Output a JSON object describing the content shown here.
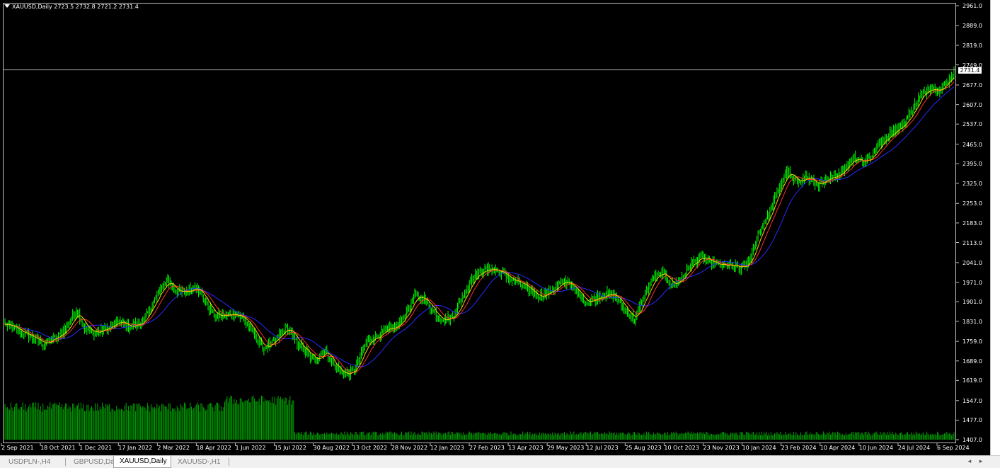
{
  "window": {
    "symbol_header": "XAUUSD,Daily  2723.5 2732.8 2721.2 2731.4",
    "current_price_label": "2731.4"
  },
  "colors": {
    "background": "#000000",
    "bull_bar": "#00ff00",
    "volume": "#00a800",
    "ma_fast": "#ffd000",
    "ma_slow": "#ff3030",
    "ma_long": "#2a2aff",
    "axis_text": "#ffffff"
  },
  "chart_data": {
    "type": "ohlc-bar",
    "instrument": "XAUUSD",
    "timeframe": "Daily",
    "last_bar": {
      "open": 2723.5,
      "high": 2732.8,
      "low": 2721.2,
      "close": 2731.4
    },
    "price_ticks": [
      "2961.0",
      "2889.0",
      "2819.0",
      "2749.0",
      "2677.0",
      "2607.0",
      "2537.0",
      "2465.0",
      "2395.0",
      "2325.0",
      "2253.0",
      "2183.0",
      "2113.0",
      "2041.0",
      "1971.0",
      "1901.0",
      "1831.0",
      "1759.0",
      "1689.0",
      "1619.0",
      "1547.0",
      "1477.0",
      "1407.0"
    ],
    "time_ticks": [
      "2 Sep 2021",
      "18 Oct 2021",
      "1 Dec 2021",
      "17 Jan 2022",
      "2 Mar 2022",
      "18 Apr 2022",
      "1 Jun 2022",
      "15 Jul 2022",
      "30 Aug 2022",
      "13 Oct 2022",
      "28 Nov 2022",
      "12 Jan 2023",
      "27 Feb 2023",
      "13 Apr 2023",
      "29 May 2023",
      "12 Jul 2023",
      "25 Aug 2023",
      "10 Oct 2023",
      "23 Nov 2023",
      "10 Jan 2024",
      "23 Feb 2024",
      "10 Apr 2024",
      "10 Jun 2024",
      "24 Jul 2024",
      "6 Sep 2024"
    ],
    "ylim": [
      1407,
      2961
    ],
    "close_path": [
      [
        0,
        1820
      ],
      [
        6,
        1770
      ],
      [
        8,
        1750
      ],
      [
        11,
        1775
      ],
      [
        13,
        1810
      ],
      [
        15,
        1870
      ],
      [
        17,
        1800
      ],
      [
        19,
        1790
      ],
      [
        22,
        1810
      ],
      [
        24,
        1830
      ],
      [
        26,
        1810
      ],
      [
        29,
        1830
      ],
      [
        31,
        1900
      ],
      [
        34,
        1980
      ],
      [
        36,
        1935
      ],
      [
        38,
        1935
      ],
      [
        40,
        1960
      ],
      [
        42,
        1900
      ],
      [
        44,
        1850
      ],
      [
        46,
        1850
      ],
      [
        48,
        1860
      ],
      [
        50,
        1840
      ],
      [
        52,
        1790
      ],
      [
        54,
        1735
      ],
      [
        56,
        1750
      ],
      [
        59,
        1810
      ],
      [
        61,
        1760
      ],
      [
        63,
        1720
      ],
      [
        65,
        1690
      ],
      [
        67,
        1730
      ],
      [
        69,
        1670
      ],
      [
        71,
        1640
      ],
      [
        73,
        1650
      ],
      [
        76,
        1760
      ],
      [
        79,
        1790
      ],
      [
        82,
        1810
      ],
      [
        84,
        1860
      ],
      [
        86,
        1920
      ],
      [
        88,
        1910
      ],
      [
        90,
        1860
      ],
      [
        92,
        1835
      ],
      [
        94,
        1850
      ],
      [
        96,
        1920
      ],
      [
        98,
        1990
      ],
      [
        100,
        2010
      ],
      [
        102,
        2020
      ],
      [
        104,
        2005
      ],
      [
        106,
        1980
      ],
      [
        108,
        1965
      ],
      [
        110,
        1940
      ],
      [
        112,
        1920
      ],
      [
        114,
        1935
      ],
      [
        116,
        1960
      ],
      [
        118,
        1975
      ],
      [
        120,
        1930
      ],
      [
        122,
        1900
      ],
      [
        124,
        1915
      ],
      [
        126,
        1930
      ],
      [
        128,
        1920
      ],
      [
        130,
        1870
      ],
      [
        132,
        1840
      ],
      [
        134,
        1920
      ],
      [
        136,
        1990
      ],
      [
        138,
        2000
      ],
      [
        140,
        1960
      ],
      [
        142,
        1990
      ],
      [
        144,
        2040
      ],
      [
        146,
        2060
      ],
      [
        148,
        2040
      ],
      [
        150,
        2030
      ],
      [
        152,
        2030
      ],
      [
        154,
        2020
      ],
      [
        156,
        2040
      ],
      [
        158,
        2150
      ],
      [
        160,
        2210
      ],
      [
        162,
        2300
      ],
      [
        164,
        2370
      ],
      [
        165,
        2340
      ],
      [
        166,
        2330
      ],
      [
        168,
        2350
      ],
      [
        170,
        2320
      ],
      [
        172,
        2330
      ],
      [
        174,
        2350
      ],
      [
        176,
        2380
      ],
      [
        178,
        2420
      ],
      [
        180,
        2400
      ],
      [
        182,
        2430
      ],
      [
        184,
        2480
      ],
      [
        186,
        2510
      ],
      [
        188,
        2530
      ],
      [
        190,
        2580
      ],
      [
        192,
        2640
      ],
      [
        194,
        2670
      ],
      [
        196,
        2660
      ],
      [
        198,
        2700
      ],
      [
        199,
        2731
      ]
    ],
    "volume_levels": {
      "first_segment_weeks": 52,
      "first_segment_avg": 1520,
      "rest_avg": 1428,
      "ylim": [
        1407,
        1620
      ]
    }
  },
  "tabs": [
    {
      "label": "USDPLN-,H4",
      "active": false
    },
    {
      "label": "GBPUSD,Daily",
      "active": false
    },
    {
      "label": "XAUUSD,Daily",
      "active": true
    },
    {
      "label": "XAUUSD-,H1",
      "active": false
    }
  ],
  "scroll_buttons": {
    "left": "◂",
    "right": "▸"
  }
}
